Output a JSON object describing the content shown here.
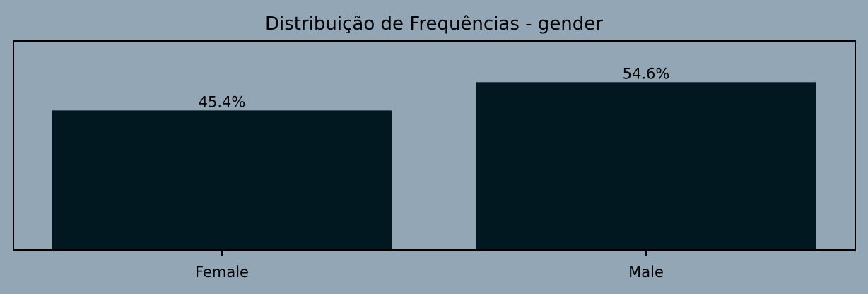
{
  "colors": {
    "background": "#93a6b6",
    "bar": "#011820",
    "axes": "#000000"
  },
  "chart_data": {
    "type": "bar",
    "title": "Distribuição de Frequências - gender",
    "xlabel": "",
    "ylabel": "",
    "categories": [
      "Female",
      "Male"
    ],
    "values": [
      45.4,
      54.6
    ],
    "value_labels": [
      "45.4%",
      "54.6%"
    ],
    "ylim": [
      0,
      68
    ],
    "grid": false,
    "y_ticks_visible": false
  }
}
